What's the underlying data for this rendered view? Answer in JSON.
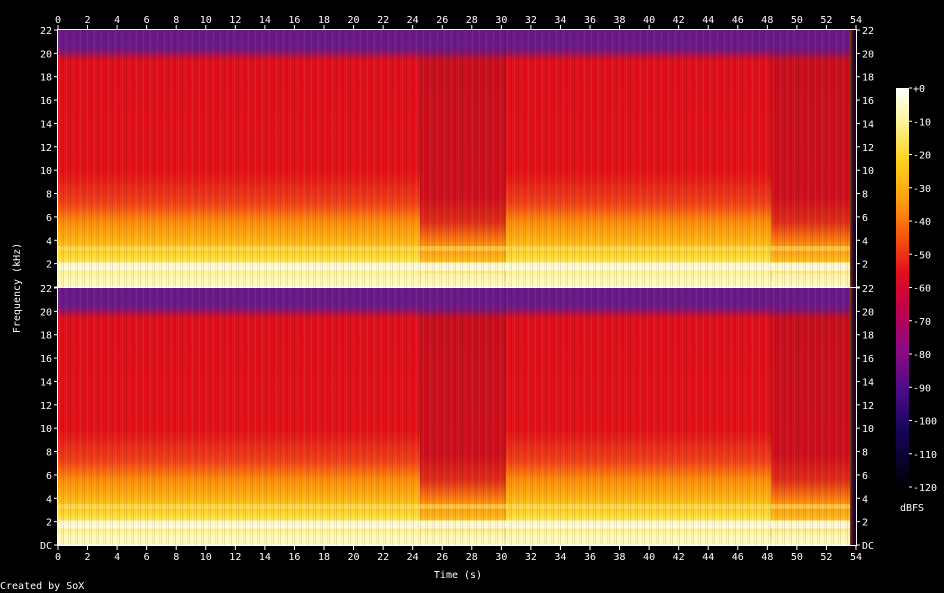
{
  "chart_data": {
    "type": "heatmap",
    "title": "",
    "xlabel": "Time (s)",
    "ylabel": "Frequency (kHz)",
    "xlim": [
      0,
      54
    ],
    "ylim": [
      0,
      22
    ],
    "x_ticks": [
      "0",
      "2",
      "4",
      "6",
      "8",
      "10",
      "12",
      "14",
      "16",
      "18",
      "20",
      "22",
      "24",
      "26",
      "28",
      "30",
      "32",
      "34",
      "36",
      "38",
      "40",
      "42",
      "44",
      "46",
      "48",
      "50",
      "52",
      "54"
    ],
    "y_ticks": [
      "DC",
      "2",
      "4",
      "6",
      "8",
      "10",
      "12",
      "14",
      "16",
      "18",
      "20",
      "22"
    ],
    "channels": 2,
    "colorbar": {
      "label": "dBFS",
      "min": -120,
      "max": 0,
      "ticks": [
        "+0",
        "-10",
        "-20",
        "-30",
        "-40",
        "-50",
        "-60",
        "-70",
        "-80",
        "-90",
        "-100",
        "-110",
        "-120"
      ]
    },
    "segments": [
      {
        "t_start": 0,
        "t_end": 24.5,
        "bright_top_khz": 8.5
      },
      {
        "t_start": 24.5,
        "t_end": 30.3,
        "bright_top_khz": 5.5
      },
      {
        "t_start": 30.3,
        "t_end": 48.3,
        "bright_top_khz": 8.5
      },
      {
        "t_start": 48.3,
        "t_end": 53.6,
        "bright_top_khz": 6
      },
      {
        "t_start": 53.6,
        "t_end": 54,
        "bright_top_khz": 0
      }
    ],
    "high_band_khz": [
      20,
      22
    ],
    "colors": {
      "peak": "#fffcc8",
      "high": "#ffd21e",
      "mid": "#ff8f08",
      "red": "#e6111a",
      "deep_red": "#c0001e",
      "purple": "#6e1a88",
      "dark": "#160030"
    }
  },
  "footer": {
    "credit": "Created by SoX"
  }
}
